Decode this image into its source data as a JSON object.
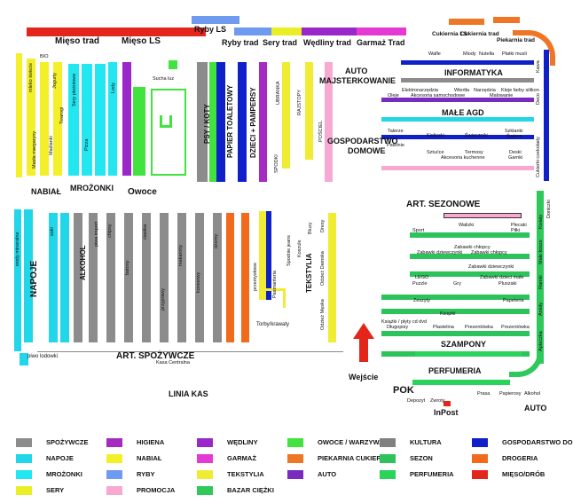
{
  "colors": {
    "spozywcze": "#8c8c8c",
    "napoje": "#21d6e8",
    "drogeria": "#f26b1d",
    "perfumeria": "#2ad35a",
    "higiena": "#a52ac2",
    "nabial": "#f3f02a",
    "mrozonki": "#22e6f0",
    "mieso": "#e3251c",
    "wedliny": "#9a27c9",
    "garmaz": "#e53ad1",
    "ryby": "#6e9af0",
    "sery": "#eaef25",
    "owoce": "#42e23f",
    "piekarnia": "#ef7624",
    "tekstylia": "#f0ec34",
    "promocja": "#f7a9d2",
    "kultura": "#808080",
    "sezon": "#2cc35a",
    "auto": "#7a2bbf",
    "bazar": "#2fc85a",
    "dom": "#1020c8"
  },
  "top": {
    "mieso_trad": "Mięso trad",
    "mieso_ls": "Mięso LS",
    "ryby_ls": "Ryby LS",
    "ryby_trad": "Ryby trad",
    "sery_trad": "Sery trad",
    "wedliny_trad": "Wędliny trad",
    "garmaz_trad": "Garmaż Trad",
    "cukiernia_ls": "Cukiernia LS",
    "cukiernia_trad": "Cukiernia trad",
    "piekarnia_trad": "Piekarnia trad"
  },
  "left": {
    "nabial": "NABIAŁ",
    "mrozonki": "MROŻONKI",
    "owoce": "Owoce",
    "sucha": "Sucha luz",
    "bio": "BIO",
    "jaja": "jaja",
    "mleko_swieze": "mleko świeże",
    "mleko_uht": "mleko uht",
    "masla": "Masła margaryny",
    "mleko_cukier": "mleko cukier sól",
    "jogurty": "Jogurty",
    "jogurty2": "Jogurty",
    "desery": "Desery",
    "swiatny": "Śmietany",
    "maslanki": "Maślanki",
    "twarogi": "Twarogi",
    "sery_zolte": "Sery żółte",
    "sery_plesniowe": "Sery pleśniowe",
    "topione": "Sery topione",
    "frytki": "Frytki",
    "pizza": "Pizza",
    "ryby_mrozone": "Ryby mrożone",
    "mieso_mrozone": "Mięso mrożone",
    "warzywa_m": "Warzywa",
    "lody": "Lody",
    "lody_twarde": "Lody twarde",
    "kostki": "Kostki lodu",
    "warzywa": "Warzywa",
    "wedliny": "wędliny",
    "garmaz": "garmaż"
  },
  "middle": {
    "psy_koty": "PSY / KOTY",
    "papier": "PAPIER TOALETOWY",
    "dzieci": "DZIECI + PAMPERSY",
    "ubranka": "UBRANKA",
    "zabawki": "Zabawki",
    "kosmetyki": "KOSMETYKI",
    "bizuteria": "BIŻUTERIA",
    "obuwie": "OBUWIE",
    "buty": "BUTY",
    "rajstopy": "RAJSTOPY",
    "skarpety": "SKARPETY",
    "poscie": "POŚCIEL",
    "spodki": "SPODKI"
  },
  "right_top": {
    "auto": "AUTO",
    "majster": "MAJSTERKOWANIE",
    "informatyka": "INFORMATYKA",
    "male_agd": "MAŁE AGD",
    "gospodarstwo": "GOSPODARSTWO",
    "domowe": "DOMOWE",
    "wafle": "Wafle",
    "miody": "Miody",
    "nutella": "Nutella",
    "platki": "Płatki musli",
    "elektronarzedzia": "Elektronarzędzia",
    "wiertla": "Wiertła",
    "narzedzia": "Narzędzia",
    "kleje": "Kleje farby silikon",
    "oleje": "Oleje",
    "akcesoria_sam": "Akcesoria samochodowe",
    "malowanie": "Malowanie",
    "telerze": "Talerze",
    "kieliszki": "Kieliszki",
    "swieczniki": "Świeczniki",
    "szklanki": "Szklanki",
    "swiece": "Świece",
    "patelnie": "Patelnie",
    "sztucce": "Sztućce",
    "termosy": "Termosy",
    "akcesoria_kuch": "Akcesoria kuchenne",
    "deski": "Deski",
    "garnki": "Garnki",
    "kawa": "Kawa",
    "deco": "Deco",
    "herbaty": "Herbaty",
    "czekolady": "Cukierki czekolady",
    "weszy": "Wazony"
  },
  "bottom_left": {
    "napoje": "NAPOJE",
    "alkohol": "ALKOHOL",
    "piwo": "piwo lodowki",
    "art_spoz": "ART. SPOŻYWCZE",
    "linia_kas": "LINIA KAS",
    "kasa": "Kasa Centralna",
    "sokiA": "soki",
    "sokiB": "soki",
    "sokiC": "soki",
    "wody": "wody mineralne",
    "wody2": "wody mineralne",
    "napoje_gaz": "napoje gazowane",
    "male_wody": "małe wody mineralne",
    "napoje_en": "napoje energetyczne",
    "wina": "wina",
    "wodki": "wódki",
    "likiery": "likiery",
    "piwa": "piwa",
    "piwa_brow": "piwa browarów lokalnie",
    "piwa_import": "piwa import",
    "whisky": "whisky / koniaki",
    "tequila": "tequila / rum",
    "chipsy": "chipsy",
    "chrupki": "chrupki",
    "paluszki": "paluszki",
    "orzeszki": "orzeszki",
    "batony": "batony",
    "cukierki": "cukierki",
    "lizaki": "lizaki",
    "czekolady": "czekolady",
    "ciastka": "ciastka",
    "galaretki": "galaretki",
    "herbata": "herbata",
    "kawa": "kawa",
    "przyprawy": "przyprawy",
    "kasze": "kasze",
    "ryze": "ryże",
    "makarony": "makarony",
    "maka": "mąka",
    "cukier": "cukier",
    "oleje": "oleje",
    "ketchupy": "ketchupy",
    "sosy": "sosy",
    "koncentraty": "koncentraty",
    "zupy": "zupy w proszku",
    "dzemy": "dżemy",
    "konserwy": "konserwy",
    "konserwy_ryb": "konserwy rybne",
    "pieczywo": "pieczywo",
    "platki": "płatki",
    "slodycze": "słodycze",
    "przetwory": "przetwory warzywne",
    "kasza": "kasza"
  },
  "bottom_mid": {
    "tekstylia": "TEKSTYLIA",
    "art_sez": "ART. SEZONOWE",
    "szampony": "SZAMPONY",
    "perfumeria": "PERFUMERIA",
    "pok": "POK",
    "inpost": "InPost",
    "wejscie": "Wejście",
    "torby": "Torby/krawaty",
    "przemyslowe": "przemysłowe",
    "paniemiernia": "Pasmanteria",
    "odziez_dam": "Odzież Damska",
    "odziez_mesk": "Odzież Męska",
    "dresy": "Dresy",
    "spodnie": "Spodnie jeans",
    "koszule": "Koszule",
    "bluzy": "Bluzy",
    "drogeria": "DROGERIA",
    "spozywcze2": "SPOŻYWCZE"
  },
  "right_bottom": {
    "sport": "Sport",
    "walizki": "Walizki",
    "plecaki": "Plecaki",
    "pilki": "Piłki",
    "zab_chlop": "Zabawki chłopcy",
    "zab_dziew": "Zabawki dziewczynki",
    "zab_chlop2": "Zabawki chłopcy",
    "zab_dziew2": "Zabawki dziewczynki",
    "lego": "LEGO",
    "puzzle": "Puzzle",
    "gry": "Gry",
    "zab_male": "Zabawki dzieci małe",
    "pluszaki": "Pluszaki",
    "zeszyty": "Zeszyty",
    "papeteria": "Papeteria",
    "ksiazki": "Książki",
    "ksiazki_cd": "Książki / płyty cd dvd",
    "dlugopisy": "Długopisy",
    "plastelina": "Plastelina",
    "prezentowka": "Prezentówka",
    "prezentowka2": "Prezentówka",
    "doniczki": "Doniczki",
    "kwiaty": "Kwiaty",
    "male_kosze": "Małe kosze",
    "ramki": "Ramki",
    "anioly": "Anioły",
    "aptecznka": "Apteczka",
    "prasa": "Prasa",
    "papierosy": "Papierosy",
    "alkohol": "Alkohol",
    "auto": "AUTO",
    "depozyt": "Depozyt",
    "zwrot": "Zwroty"
  },
  "legend": [
    {
      "label": "SPOŻYWCZE",
      "color": "#8c8c8c"
    },
    {
      "label": "HIGIENA",
      "color": "#a52ac2"
    },
    {
      "label": "WĘDLINY",
      "color": "#9a27c9"
    },
    {
      "label": "OWOCE / WARZYWA",
      "color": "#42e23f"
    },
    {
      "label": "KULTURA",
      "color": "#808080"
    },
    {
      "label": "GOSPODARSTWO DOMOWE",
      "color": "#1020c8"
    },
    {
      "label": "NAPOJE",
      "color": "#21d6e8"
    },
    {
      "label": "NABIAŁ",
      "color": "#f3f02a"
    },
    {
      "label": "GARMAŻ",
      "color": "#e53ad1"
    },
    {
      "label": "PIEKARNIA CUKIERNIA",
      "color": "#ef7624"
    },
    {
      "label": "SEZON",
      "color": "#2cc35a"
    },
    {
      "label": "DROGERIA",
      "color": "#f26b1d"
    },
    {
      "label": "MROŻONKI",
      "color": "#22e6f0"
    },
    {
      "label": "RYBY",
      "color": "#6e9af0"
    },
    {
      "label": "TEKSTYLIA",
      "color": "#f0ec34"
    },
    {
      "label": "AUTO",
      "color": "#7a2bbf"
    },
    {
      "label": "PERFUMERIA",
      "color": "#2ad35a"
    },
    {
      "label": "MIĘSO/DRÓB",
      "color": "#e3251c"
    },
    {
      "label": "SERY",
      "color": "#eaef25"
    },
    {
      "label": "PROMOCJA",
      "color": "#f7a9d2"
    },
    {
      "label": "BAZAR CIĘŻKI",
      "color": "#2fc85a"
    }
  ]
}
